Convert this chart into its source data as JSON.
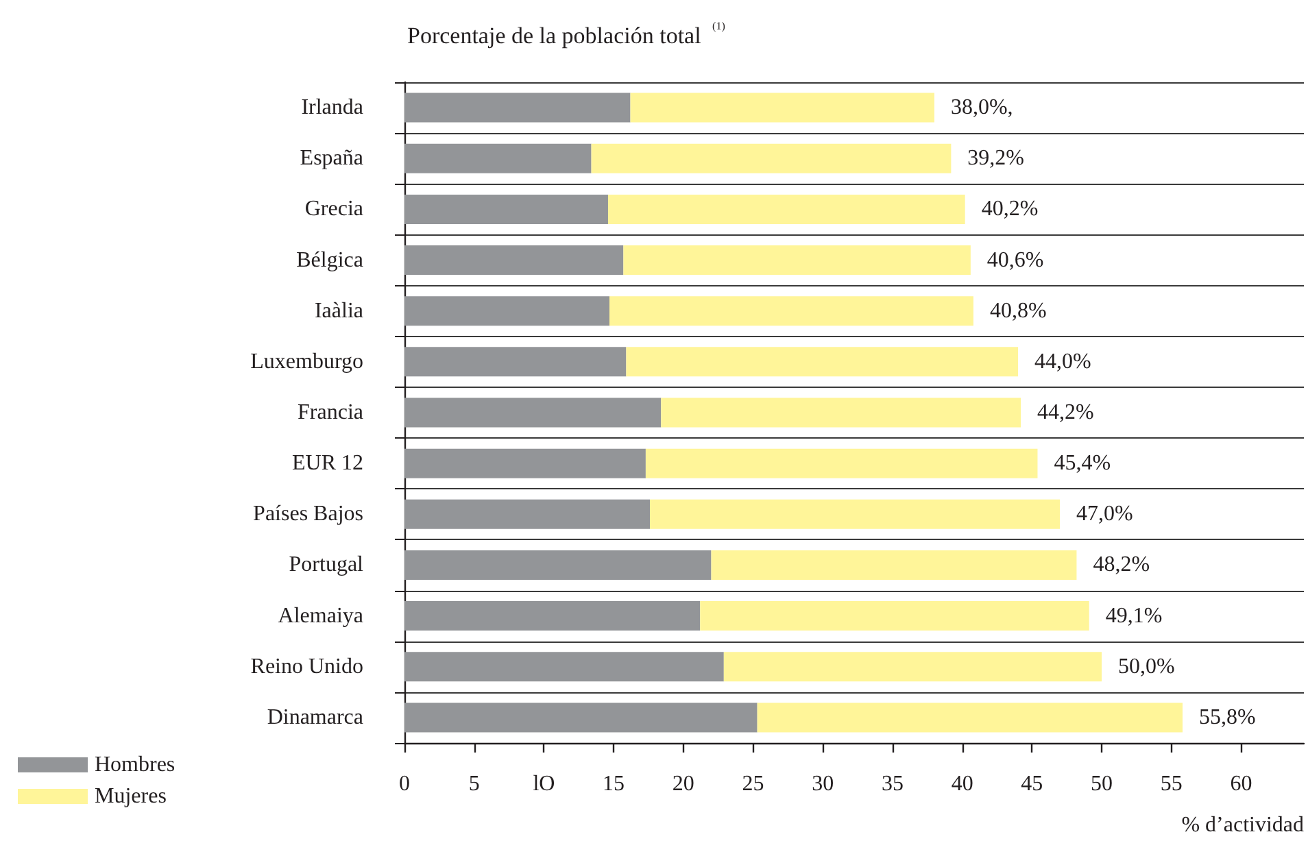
{
  "chart_data": {
    "type": "bar",
    "orientation": "horizontal",
    "stacked": true,
    "title": "Porcentaje de la población total $^{(1)}$",
    "xlabel": "% d’actividad",
    "categories": [
      "Irlanda",
      "España",
      "Grecia",
      "Bélgica",
      "Iaàlia",
      "Luxemburgo",
      "Francia",
      "EUR 12",
      "Países Bajos",
      "Portugal",
      "Alemaiya",
      "Reino Unido",
      "Dinamarca"
    ],
    "series": [
      {
        "name": "Hombres",
        "color": "#939598",
        "values": [
          16.2,
          13.4,
          14.6,
          15.7,
          14.7,
          15.9,
          18.4,
          17.3,
          17.6,
          22.0,
          21.2,
          22.9,
          25.3
        ]
      },
      {
        "name": "Mujeres",
        "color": "#fff599",
        "values": [
          21.8,
          25.8,
          25.6,
          24.9,
          26.1,
          28.1,
          25.8,
          28.1,
          29.4,
          26.2,
          27.9,
          27.1,
          30.5
        ]
      }
    ],
    "totals": [
      "38,0%,",
      "39,2%",
      "40,2%",
      "40,6%",
      "40,8%",
      "44,0%",
      "44,2%",
      "45,4%",
      "47,0%",
      "48,2%",
      "49,1%",
      "50,0%",
      "55,8%"
    ],
    "xlim": [
      0,
      64.5
    ],
    "xticks": [
      0,
      5,
      {
        "value": 10,
        "label": "lO"
      },
      15,
      20,
      25,
      30,
      35,
      40,
      45,
      50,
      55,
      60
    ],
    "grid": "y",
    "legend": "bottom left"
  }
}
